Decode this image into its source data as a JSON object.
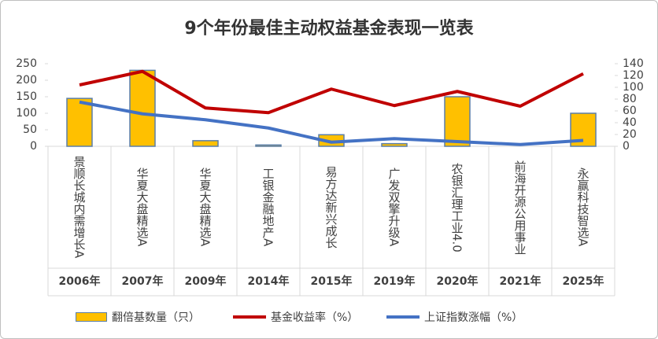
{
  "chart_data": {
    "type": "bar",
    "title": "9个年份最佳主动权益基金表现一览表",
    "categories": [
      "景顺长城内需增长A",
      "华夏大盘精选A",
      "华夏大盘精选A",
      "工银金融地产A",
      "易方达新兴成长",
      "广发双擎升级A",
      "农银汇理工业4.0",
      "前海开源公用事业",
      "永赢科技智选A"
    ],
    "years": [
      "2006年",
      "2007年",
      "2009年",
      "2014年",
      "2015年",
      "2019年",
      "2020年",
      "2021年",
      "2025年"
    ],
    "series": [
      {
        "name": "翻倍基数量（只）",
        "type": "bar",
        "color": "#FFC000",
        "edge": "#5B7FA8",
        "values": [
          145,
          230,
          17,
          4,
          35,
          8,
          150,
          0,
          100
        ]
      },
      {
        "name": "基金收益率（%）",
        "type": "line",
        "axis": "y2",
        "color": "#C00000",
        "values": [
          104,
          127,
          65,
          57,
          97,
          69,
          93,
          68,
          123
        ]
      },
      {
        "name": "上证指数涨幅（%）",
        "type": "line",
        "axis": "y2",
        "color": "#4472C4",
        "values": [
          75,
          55,
          45,
          31,
          7,
          13,
          8,
          3,
          10
        ]
      }
    ],
    "ylim": [
      0,
      250
    ],
    "yticks": [
      0,
      50,
      100,
      150,
      200,
      250
    ],
    "y2lim": [
      0,
      140
    ],
    "y2ticks": [
      0,
      20,
      40,
      60,
      80,
      100,
      120,
      140
    ]
  }
}
